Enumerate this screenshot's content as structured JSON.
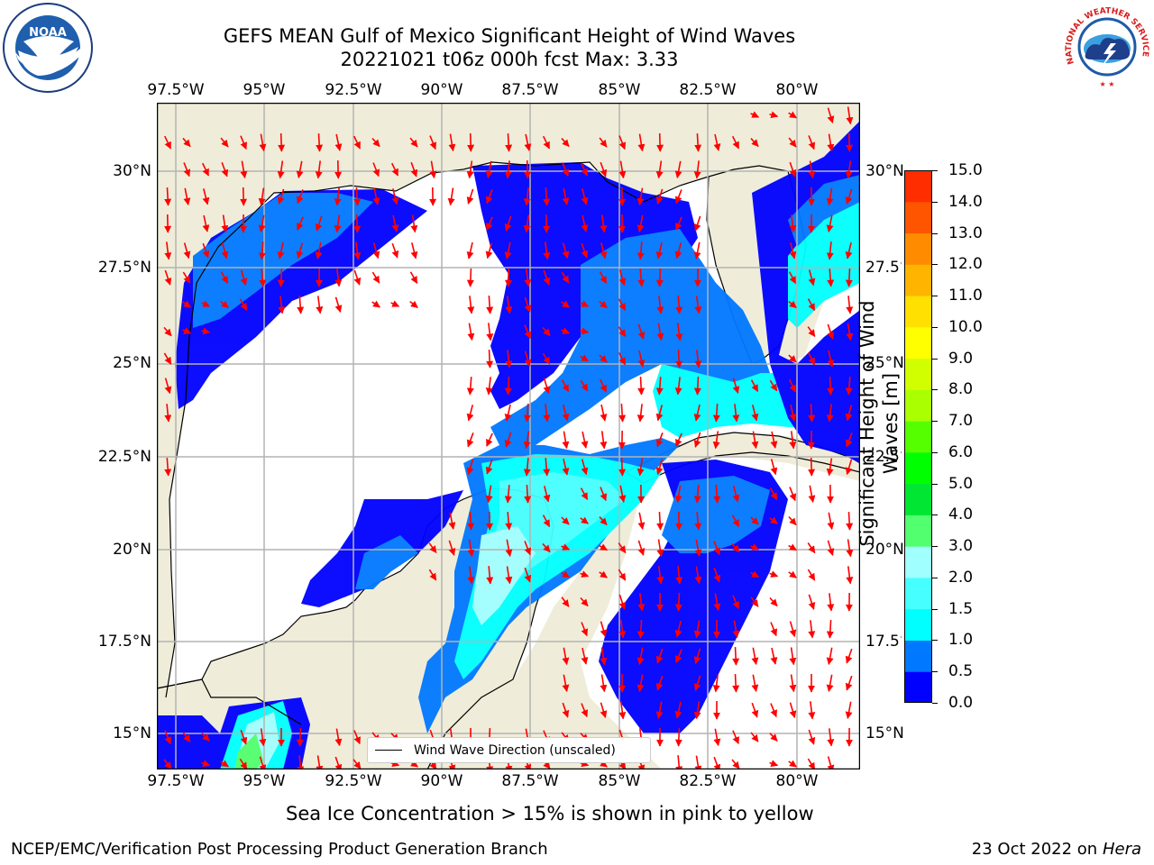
{
  "title": {
    "line1": "GEFS MEAN Gulf of Mexico Significant Height of Wind Waves",
    "line2": "20221021 t06z 000h fcst   Max: 3.33"
  },
  "logos": {
    "left": "NOAA",
    "right": "NATIONAL WEATHER SERVICE"
  },
  "map": {
    "lon_labels": [
      "97.5°W",
      "95°W",
      "92.5°W",
      "90°W",
      "87.5°W",
      "85°W",
      "82.5°W",
      "80°W"
    ],
    "lat_labels": [
      "30°N",
      "27.5°N",
      "25°N",
      "22.5°N",
      "20°N",
      "17.5°N",
      "15°N"
    ],
    "colors": {
      "land": "#efedd9",
      "ocean": "#ffffff",
      "grid": "#b3b3b3",
      "arrow": "#ff0000"
    }
  },
  "colorbar": {
    "title": "Significant Height of Wind Waves [m]",
    "ticks": [
      "15.0",
      "14.0",
      "13.0",
      "12.0",
      "11.0",
      "10.0",
      "9.0",
      "8.0",
      "7.0",
      "6.0",
      "5.0",
      "4.0",
      "3.0",
      "2.0",
      "1.5",
      "1.0",
      "0.5",
      "0.0"
    ],
    "colors_bottom_to_top": [
      "#0000ff",
      "#0078ff",
      "#00ffff",
      "#46ffff",
      "#a0ffff",
      "#52ff6e",
      "#00e632",
      "#00ff00",
      "#55ff00",
      "#aaff00",
      "#d2ff00",
      "#ffff00",
      "#ffe000",
      "#ffb400",
      "#ff8c00",
      "#ff5500",
      "#ff2d00",
      "#ff0000"
    ]
  },
  "legend": {
    "label": "Wind Wave Direction (unscaled)"
  },
  "caption": "Sea Ice Concentration > 15% is shown in pink to yellow",
  "footer": {
    "left": "NCEP/EMC/Verification Post Processing Product Generation Branch",
    "right_prefix": "23 Oct 2022 on ",
    "right_machine": "Hera"
  }
}
